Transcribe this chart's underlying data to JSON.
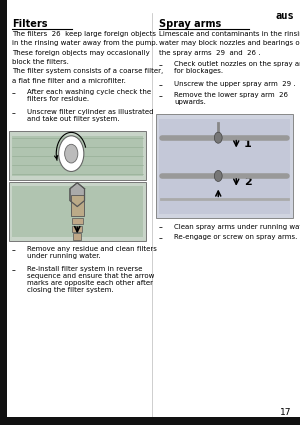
{
  "page_num": "17",
  "top_right_text": "aus",
  "bg_color": "#ffffff",
  "sections": {
    "filters": {
      "title": "Filters",
      "body_lines": [
        "The filters  26  keep large foreign objects",
        "in the rinsing water away from the pump.",
        "These foreign objects may occasionally",
        "block the filters.",
        "The filter system consists of a coarse filter,",
        "a flat fine filter and a microfilter."
      ],
      "bullets_before": [
        "After each washing cycle check the\nfilters for residue.",
        "Unscrew filter cylinder as illustrated\nand take out filter system."
      ],
      "bullets_after": [
        "Remove any residue and clean filters\nunder running water.",
        "Re-install filter system in reverse\nsequence and ensure that the arrow\nmarks are opposite each other after\nclosing the filter system."
      ]
    },
    "spray_arms": {
      "title": "Spray arms",
      "body_lines": [
        "Limescale and contaminants in the rinsing",
        "water may block nozzles and bearings on",
        "the spray arms  29  and  26 ."
      ],
      "bullets_before": [
        "Check outlet nozzles on the spray arms\nfor blockages.",
        "Unscrew the upper spray arm  29 .",
        "Remove the lower spray arm  26 \nupwards."
      ],
      "bullets_after": [
        "Clean spray arms under running water.",
        "Re-engage or screw on spray arms."
      ]
    }
  }
}
